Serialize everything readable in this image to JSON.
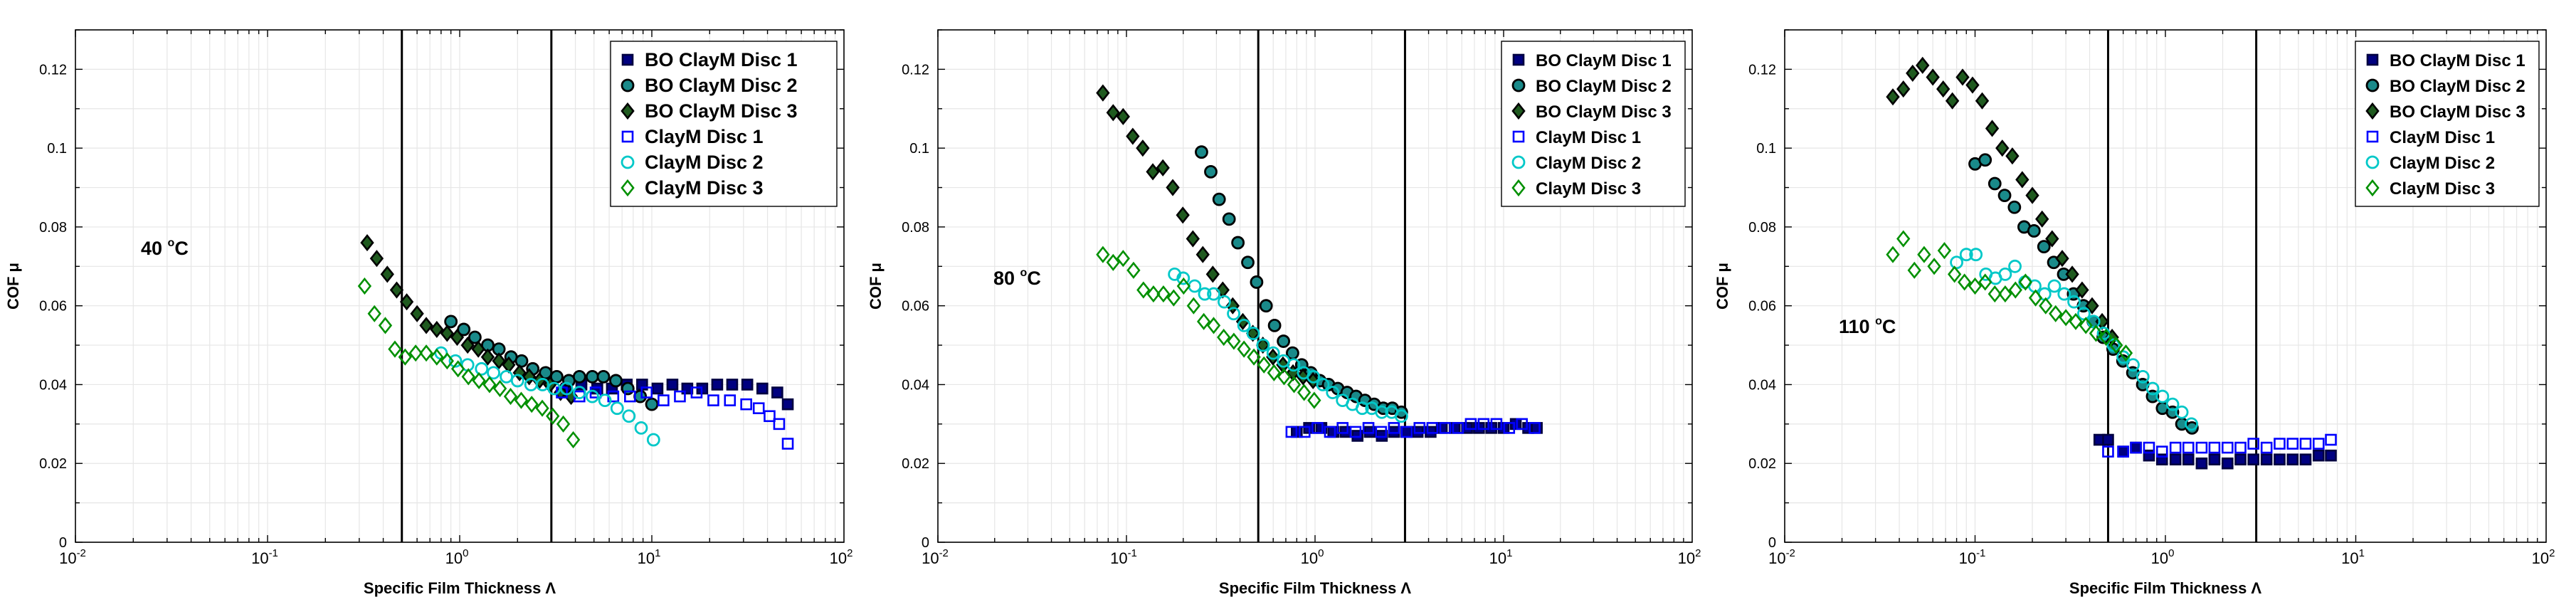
{
  "chart_data": [
    {
      "type": "scatter",
      "panel": "40C",
      "annotation": {
        "value": "40",
        "unit": "C"
      },
      "xlabel": "Specific Film Thickness Λ",
      "ylabel": "COF μ",
      "xscale": "log",
      "xlim": [
        0.01,
        100
      ],
      "ylim": [
        0,
        0.13
      ],
      "yticks": [
        "0",
        "0.02",
        "0.04",
        "0.06",
        "0.08",
        "0.1",
        "0.12"
      ],
      "xticks": [
        "10^-2",
        "10^-1",
        "10^0",
        "10^1",
        "10^2"
      ],
      "vertical_lines": [
        0.5,
        3
      ],
      "grid": true,
      "legend_placement": "top-right",
      "series": [
        {
          "name": "BO ClayM Disc 1",
          "marker": "square-filled",
          "stroke": "#000040",
          "fill": "#000080",
          "x": [
            3.6,
            4.3,
            5.2,
            6.2,
            7.4,
            8.9,
            10.7,
            12.8,
            15.3,
            18.3,
            21.9,
            26.2,
            31.4,
            37.6,
            45,
            51
          ],
          "y": [
            0.039,
            0.04,
            0.039,
            0.039,
            0.04,
            0.04,
            0.039,
            0.04,
            0.039,
            0.039,
            0.04,
            0.04,
            0.04,
            0.039,
            0.038,
            0.035
          ]
        },
        {
          "name": "BO ClayM Disc 2",
          "marker": "circle-filled",
          "stroke": "#000000",
          "fill": "#1a8a8a",
          "x": [
            0.9,
            1.05,
            1.2,
            1.4,
            1.6,
            1.85,
            2.1,
            2.4,
            2.8,
            3.2,
            3.7,
            4.2,
            4.9,
            5.6,
            6.5,
            7.5,
            8.7,
            10
          ],
          "y": [
            0.056,
            0.054,
            0.052,
            0.05,
            0.049,
            0.047,
            0.046,
            0.044,
            0.043,
            0.042,
            0.041,
            0.042,
            0.042,
            0.042,
            0.041,
            0.039,
            0.037,
            0.035
          ]
        },
        {
          "name": "BO ClayM Disc 3",
          "marker": "diamond-filled",
          "stroke": "#000000",
          "fill": "#1f5a1f",
          "x": [
            0.33,
            0.37,
            0.42,
            0.47,
            0.53,
            0.6,
            0.67,
            0.76,
            0.86,
            0.97,
            1.1,
            1.25,
            1.4,
            1.6,
            1.8,
            2.05,
            2.3,
            2.6,
            2.95,
            3.35,
            3.8
          ],
          "y": [
            0.076,
            0.072,
            0.068,
            0.064,
            0.061,
            0.058,
            0.055,
            0.054,
            0.053,
            0.052,
            0.05,
            0.049,
            0.047,
            0.046,
            0.045,
            0.043,
            0.042,
            0.041,
            0.04,
            0.038,
            0.037
          ]
        },
        {
          "name": "ClayM Disc 1",
          "marker": "square-open",
          "stroke": "#0000ff",
          "fill": "none",
          "x": [
            3.4,
            4.2,
            5.1,
            6.3,
            7.7,
            9.4,
            11.5,
            14,
            17.1,
            20.9,
            25.5,
            31,
            36,
            41,
            46,
            51
          ],
          "y": [
            0.038,
            0.037,
            0.038,
            0.037,
            0.037,
            0.038,
            0.036,
            0.037,
            0.038,
            0.036,
            0.036,
            0.035,
            0.034,
            0.032,
            0.03,
            0.025
          ]
        },
        {
          "name": "ClayM Disc 2",
          "marker": "circle-open",
          "stroke": "#00c8c8",
          "fill": "none",
          "x": [
            0.8,
            0.95,
            1.1,
            1.3,
            1.5,
            1.75,
            2,
            2.35,
            2.7,
            3.1,
            3.6,
            4.2,
            4.9,
            5.7,
            6.6,
            7.6,
            8.8,
            10.2
          ],
          "y": [
            0.048,
            0.046,
            0.045,
            0.044,
            0.043,
            0.042,
            0.041,
            0.04,
            0.04,
            0.039,
            0.039,
            0.038,
            0.037,
            0.036,
            0.034,
            0.032,
            0.029,
            0.026
          ]
        },
        {
          "name": "ClayM Disc 3",
          "marker": "diamond-open",
          "stroke": "#009000",
          "fill": "none",
          "x": [
            0.32,
            0.36,
            0.41,
            0.46,
            0.52,
            0.59,
            0.67,
            0.76,
            0.86,
            0.98,
            1.11,
            1.26,
            1.43,
            1.62,
            1.84,
            2.09,
            2.37,
            2.69,
            3.05,
            3.46,
            3.9
          ],
          "y": [
            0.065,
            0.058,
            0.055,
            0.049,
            0.047,
            0.048,
            0.048,
            0.047,
            0.046,
            0.044,
            0.042,
            0.041,
            0.04,
            0.039,
            0.037,
            0.036,
            0.035,
            0.034,
            0.032,
            0.03,
            0.026
          ]
        }
      ]
    },
    {
      "type": "scatter",
      "panel": "80C",
      "annotation": {
        "value": "80",
        "unit": "C"
      },
      "xlabel": "Specific Film Thickness Λ",
      "ylabel": "COF μ",
      "xscale": "log",
      "xlim": [
        0.01,
        100
      ],
      "ylim": [
        0,
        0.13
      ],
      "yticks": [
        "0",
        "0.02",
        "0.04",
        "0.06",
        "0.08",
        "0.1",
        "0.12"
      ],
      "xticks": [
        "10^-2",
        "10^-1",
        "10^0",
        "10^1",
        "10^2"
      ],
      "vertical_lines": [
        0.5,
        3
      ],
      "grid": true,
      "legend_placement": "top-right",
      "series": [
        {
          "name": "BO ClayM Disc 1",
          "marker": "square-filled",
          "stroke": "#000040",
          "fill": "#000080",
          "x": [
            0.8,
            0.93,
            1.08,
            1.25,
            1.45,
            1.68,
            1.95,
            2.26,
            2.62,
            3.04,
            3.5,
            4.1,
            4.7,
            5.5,
            6.4,
            7.4,
            8.6,
            10,
            11.6,
            13.5,
            15
          ],
          "y": [
            0.028,
            0.029,
            0.029,
            0.028,
            0.028,
            0.027,
            0.028,
            0.027,
            0.028,
            0.028,
            0.028,
            0.028,
            0.029,
            0.029,
            0.029,
            0.029,
            0.029,
            0.029,
            0.03,
            0.029,
            0.029
          ]
        },
        {
          "name": "BO ClayM Disc 2",
          "marker": "circle-filled",
          "stroke": "#000000",
          "fill": "#1a8a8a",
          "x": [
            0.25,
            0.28,
            0.31,
            0.35,
            0.39,
            0.44,
            0.49,
            0.55,
            0.61,
            0.68,
            0.76,
            0.85,
            0.95,
            1.06,
            1.18,
            1.32,
            1.48,
            1.65,
            1.84,
            2.06,
            2.3,
            2.57,
            2.87
          ],
          "y": [
            0.099,
            0.094,
            0.087,
            0.082,
            0.076,
            0.071,
            0.066,
            0.06,
            0.055,
            0.051,
            0.048,
            0.045,
            0.043,
            0.041,
            0.04,
            0.039,
            0.038,
            0.037,
            0.036,
            0.035,
            0.034,
            0.034,
            0.033
          ]
        },
        {
          "name": "BO ClayM Disc 3",
          "marker": "diamond-filled",
          "stroke": "#000000",
          "fill": "#1f5a1f",
          "x": [
            0.075,
            0.085,
            0.096,
            0.108,
            0.122,
            0.138,
            0.156,
            0.176,
            0.199,
            0.225,
            0.254,
            0.287,
            0.324,
            0.366,
            0.414,
            0.468,
            0.529,
            0.598,
            0.676,
            0.764,
            0.864,
            0.976
          ],
          "y": [
            0.114,
            0.109,
            0.108,
            0.103,
            0.1,
            0.094,
            0.095,
            0.09,
            0.083,
            0.077,
            0.073,
            0.068,
            0.064,
            0.06,
            0.056,
            0.053,
            0.05,
            0.047,
            0.045,
            0.043,
            0.042,
            0.041
          ]
        },
        {
          "name": "ClayM Disc 1",
          "marker": "square-open",
          "stroke": "#0000ff",
          "fill": "none",
          "x": [
            0.75,
            0.88,
            1.03,
            1.2,
            1.4,
            1.64,
            1.92,
            2.24,
            2.62,
            3.06,
            3.58,
            4.19,
            4.9,
            5.73,
            6.7,
            7.83,
            9.16,
            10.7,
            12.5,
            14.6
          ],
          "y": [
            0.028,
            0.028,
            0.029,
            0.028,
            0.029,
            0.028,
            0.029,
            0.028,
            0.029,
            0.028,
            0.029,
            0.029,
            0.029,
            0.029,
            0.03,
            0.03,
            0.03,
            0.029,
            0.03,
            0.029
          ]
        },
        {
          "name": "ClayM Disc 2",
          "marker": "circle-open",
          "stroke": "#00c8c8",
          "fill": "none",
          "x": [
            0.18,
            0.2,
            0.23,
            0.26,
            0.29,
            0.33,
            0.37,
            0.42,
            0.47,
            0.53,
            0.6,
            0.68,
            0.77,
            0.87,
            0.98,
            1.1,
            1.24,
            1.4,
            1.58,
            1.78,
            2,
            2.26,
            2.55,
            2.87
          ],
          "y": [
            0.068,
            0.067,
            0.065,
            0.063,
            0.063,
            0.061,
            0.058,
            0.055,
            0.053,
            0.05,
            0.048,
            0.046,
            0.045,
            0.043,
            0.042,
            0.04,
            0.038,
            0.036,
            0.035,
            0.034,
            0.034,
            0.033,
            0.033,
            0.032
          ]
        },
        {
          "name": "ClayM Disc 3",
          "marker": "diamond-open",
          "stroke": "#009000",
          "fill": "none",
          "x": [
            0.075,
            0.085,
            0.096,
            0.109,
            0.123,
            0.139,
            0.157,
            0.178,
            0.201,
            0.227,
            0.257,
            0.29,
            0.328,
            0.371,
            0.42,
            0.474,
            0.536,
            0.606,
            0.685,
            0.774,
            0.875,
            0.99
          ],
          "y": [
            0.073,
            0.071,
            0.072,
            0.069,
            0.064,
            0.063,
            0.063,
            0.062,
            0.065,
            0.06,
            0.056,
            0.055,
            0.052,
            0.051,
            0.049,
            0.047,
            0.045,
            0.043,
            0.042,
            0.04,
            0.038,
            0.036
          ]
        }
      ]
    },
    {
      "type": "scatter",
      "panel": "110C",
      "annotation": {
        "value": "110",
        "unit": "C"
      },
      "xlabel": "Specific Film Thickness Λ",
      "ylabel": "COF μ",
      "xscale": "log",
      "xlim": [
        0.01,
        100
      ],
      "ylim": [
        0,
        0.13
      ],
      "yticks": [
        "0",
        "0.02",
        "0.04",
        "0.06",
        "0.08",
        "0.1",
        "0.12"
      ],
      "xticks": [
        "10^-2",
        "10^-1",
        "10^0",
        "10^1",
        "10^2"
      ],
      "vertical_lines": [
        0.5,
        3
      ],
      "grid": true,
      "legend_placement": "top-right",
      "series": [
        {
          "name": "BO ClayM Disc 1",
          "marker": "square-filled",
          "stroke": "#000040",
          "fill": "#000080",
          "x": [
            0.45,
            0.5,
            0.6,
            0.7,
            0.82,
            0.96,
            1.13,
            1.32,
            1.55,
            1.81,
            2.12,
            2.48,
            2.9,
            3.4,
            3.98,
            4.66,
            5.45,
            6.38,
            7.4
          ],
          "y": [
            0.026,
            0.026,
            0.023,
            0.024,
            0.022,
            0.021,
            0.021,
            0.021,
            0.02,
            0.021,
            0.02,
            0.021,
            0.021,
            0.021,
            0.021,
            0.021,
            0.021,
            0.022,
            0.022
          ]
        },
        {
          "name": "BO ClayM Disc 2",
          "marker": "circle-filled",
          "stroke": "#000000",
          "fill": "#1a8a8a",
          "x": [
            0.1,
            0.113,
            0.127,
            0.143,
            0.161,
            0.181,
            0.204,
            0.23,
            0.259,
            0.292,
            0.329,
            0.371,
            0.418,
            0.471,
            0.531,
            0.598,
            0.674,
            0.76,
            0.856,
            0.965,
            1.09,
            1.22,
            1.38
          ],
          "y": [
            0.096,
            0.097,
            0.091,
            0.088,
            0.085,
            0.08,
            0.079,
            0.075,
            0.071,
            0.068,
            0.063,
            0.06,
            0.056,
            0.052,
            0.049,
            0.046,
            0.043,
            0.04,
            0.037,
            0.034,
            0.033,
            0.03,
            0.029
          ]
        },
        {
          "name": "BO ClayM Disc 3",
          "marker": "diamond-filled",
          "stroke": "#000000",
          "fill": "#1f5a1f",
          "x": [
            0.037,
            0.042,
            0.047,
            0.053,
            0.06,
            0.068,
            0.076,
            0.086,
            0.097,
            0.109,
            0.123,
            0.139,
            0.157,
            0.177,
            0.2,
            0.225,
            0.254,
            0.287,
            0.324,
            0.365,
            0.412,
            0.465,
            0.525
          ],
          "y": [
            0.113,
            0.115,
            0.119,
            0.121,
            0.118,
            0.115,
            0.112,
            0.118,
            0.116,
            0.112,
            0.105,
            0.1,
            0.098,
            0.092,
            0.088,
            0.082,
            0.077,
            0.072,
            0.068,
            0.064,
            0.06,
            0.056,
            0.052
          ]
        },
        {
          "name": "ClayM Disc 1",
          "marker": "square-open",
          "stroke": "#0000ff",
          "fill": "none",
          "x": [
            0.5,
            0.6,
            0.7,
            0.82,
            0.96,
            1.13,
            1.32,
            1.55,
            1.81,
            2.12,
            2.48,
            2.9,
            3.4,
            3.98,
            4.66,
            5.45,
            6.38,
            7.4
          ],
          "y": [
            0.023,
            0.023,
            0.024,
            0.024,
            0.023,
            0.024,
            0.024,
            0.024,
            0.024,
            0.024,
            0.024,
            0.025,
            0.024,
            0.025,
            0.025,
            0.025,
            0.025,
            0.026
          ]
        },
        {
          "name": "ClayM Disc 2",
          "marker": "circle-open",
          "stroke": "#00c8c8",
          "fill": "none",
          "x": [
            0.08,
            0.09,
            0.101,
            0.114,
            0.128,
            0.144,
            0.162,
            0.183,
            0.206,
            0.232,
            0.261,
            0.294,
            0.331,
            0.373,
            0.42,
            0.473,
            0.533,
            0.6,
            0.676,
            0.761,
            0.857,
            0.965,
            1.09,
            1.22,
            1.37
          ],
          "y": [
            0.071,
            0.073,
            0.073,
            0.068,
            0.067,
            0.068,
            0.07,
            0.066,
            0.065,
            0.063,
            0.065,
            0.063,
            0.061,
            0.058,
            0.056,
            0.053,
            0.05,
            0.047,
            0.045,
            0.042,
            0.039,
            0.037,
            0.035,
            0.033,
            0.03
          ]
        },
        {
          "name": "ClayM Disc 3",
          "marker": "diamond-open",
          "stroke": "#009000",
          "fill": "none",
          "x": [
            0.037,
            0.042,
            0.048,
            0.054,
            0.061,
            0.069,
            0.078,
            0.088,
            0.1,
            0.113,
            0.127,
            0.144,
            0.163,
            0.184,
            0.208,
            0.235,
            0.265,
            0.3,
            0.338,
            0.382,
            0.432,
            0.488,
            0.551,
            0.62
          ],
          "y": [
            0.073,
            0.077,
            0.069,
            0.073,
            0.07,
            0.074,
            0.068,
            0.066,
            0.065,
            0.066,
            0.063,
            0.063,
            0.064,
            0.066,
            0.062,
            0.06,
            0.058,
            0.057,
            0.056,
            0.055,
            0.053,
            0.052,
            0.05,
            0.048
          ]
        }
      ]
    }
  ]
}
